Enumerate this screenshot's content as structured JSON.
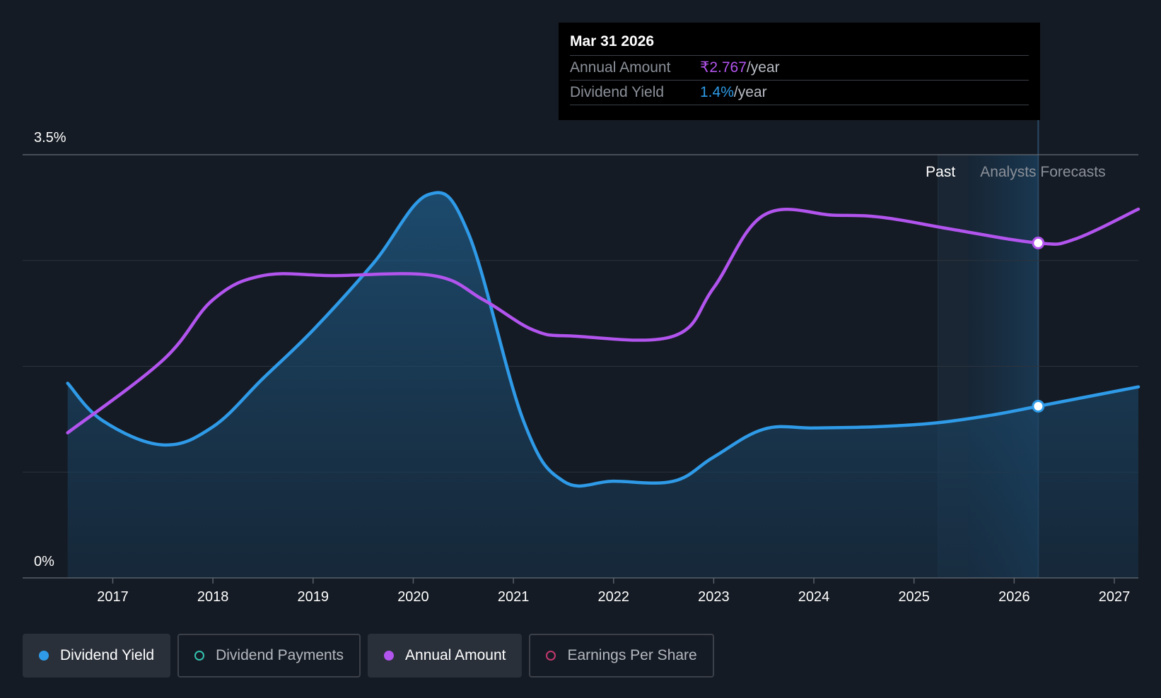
{
  "chart_data": {
    "type": "line",
    "y_axis": {
      "top_label": "3.5%",
      "bottom_label": "0%",
      "ylim": [
        0,
        3.5
      ]
    },
    "x_ticks": [
      "2017",
      "2018",
      "2019",
      "2020",
      "2021",
      "2022",
      "2023",
      "2024",
      "2025",
      "2026",
      "2027"
    ],
    "x_range": [
      2016.1,
      2027.24
    ],
    "grid": true,
    "regions": {
      "past_label": "Past",
      "forecast_label": "Analysts Forecasts",
      "past_start": 2025.24,
      "forecast_start": 2025.54,
      "forecast_end": 2026.24
    },
    "series": [
      {
        "name": "Dividend Yield",
        "color": "#2f9be8",
        "filled": true,
        "points": [
          [
            2016.55,
            1.61
          ],
          [
            2016.9,
            1.3
          ],
          [
            2017.5,
            1.1
          ],
          [
            2018.0,
            1.25
          ],
          [
            2018.5,
            1.65
          ],
          [
            2019.0,
            2.05
          ],
          [
            2019.6,
            2.6
          ],
          [
            2020.15,
            3.17
          ],
          [
            2020.55,
            2.85
          ],
          [
            2021.1,
            1.3
          ],
          [
            2021.5,
            0.8
          ],
          [
            2022.0,
            0.8
          ],
          [
            2022.6,
            0.8
          ],
          [
            2023.0,
            1.0
          ],
          [
            2023.5,
            1.23
          ],
          [
            2024.0,
            1.24
          ],
          [
            2024.6,
            1.25
          ],
          [
            2025.2,
            1.28
          ],
          [
            2025.8,
            1.35
          ],
          [
            2026.24,
            1.42
          ],
          [
            2027.24,
            1.58
          ]
        ],
        "highlight": [
          2026.24,
          1.42
        ]
      },
      {
        "name": "Annual Amount",
        "color": "#b254ee",
        "filled": false,
        "points": [
          [
            2016.55,
            1.2
          ],
          [
            2017.5,
            1.8
          ],
          [
            2018.0,
            2.3
          ],
          [
            2018.5,
            2.5
          ],
          [
            2019.2,
            2.5
          ],
          [
            2020.2,
            2.5
          ],
          [
            2020.7,
            2.3
          ],
          [
            2021.2,
            2.05
          ],
          [
            2021.6,
            2.0
          ],
          [
            2022.6,
            2.0
          ],
          [
            2023.0,
            2.4
          ],
          [
            2023.5,
            3.0
          ],
          [
            2024.2,
            3.0
          ],
          [
            2024.7,
            2.98
          ],
          [
            2025.4,
            2.88
          ],
          [
            2026.24,
            2.77
          ],
          [
            2026.6,
            2.8
          ],
          [
            2027.24,
            3.05
          ]
        ],
        "highlight": [
          2026.24,
          2.77
        ]
      }
    ]
  },
  "tooltip": {
    "date": "Mar 31 2026",
    "rows": [
      {
        "label": "Annual Amount",
        "value": "₹2.767",
        "unit": "/year"
      },
      {
        "label": "Dividend Yield",
        "value": "1.4%",
        "unit": "/year"
      }
    ]
  },
  "legend": [
    {
      "label": "Dividend Yield",
      "color": "#2f9be8",
      "style": "filled-dot",
      "active": true
    },
    {
      "label": "Dividend Payments",
      "color": "#33c2b0",
      "style": "ring",
      "active": false
    },
    {
      "label": "Annual Amount",
      "color": "#b254ee",
      "style": "filled-dot",
      "active": true
    },
    {
      "label": "Earnings Per Share",
      "color": "#c2386e",
      "style": "ring",
      "active": false
    }
  ]
}
